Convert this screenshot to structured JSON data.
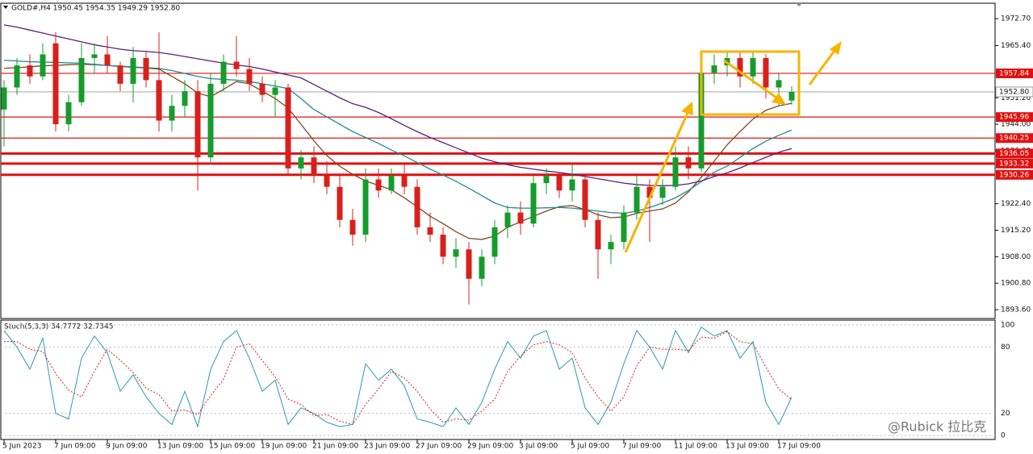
{
  "chart_data": [
    {
      "type": "candlestick",
      "title": "GOLD#,H4  1950.45 1954.35 1949.29 1952.80",
      "categories": [
        "5 Jun 2023",
        null,
        null,
        null,
        "7 Jun 09:00",
        null,
        null,
        null,
        "9 Jun 09:00",
        null,
        null,
        null,
        "13 Jun 09:00",
        null,
        null,
        null,
        "15 Jun 09:00",
        null,
        null,
        null,
        "19 Jun 09:00",
        null,
        null,
        null,
        "21 Jun 09:00",
        null,
        null,
        null,
        "23 Jun 09:00",
        null,
        null,
        null,
        "27 Jun 09:00",
        null,
        null,
        null,
        "29 Jun 09:00",
        null,
        null,
        null,
        "3 Jul 09:00",
        null,
        null,
        null,
        "5 Jul 09:00",
        null,
        null,
        null,
        "7 Jul 09:00",
        null,
        null,
        null,
        "11 Jul 09:00",
        null,
        null,
        null,
        "13 Jul 09:00",
        null,
        null,
        null,
        "17 Jul 09:00",
        null
      ],
      "open": [
        1948,
        1954,
        1960,
        1957,
        1966,
        1944,
        1950,
        1962,
        1963,
        1960,
        1955,
        1962,
        1956,
        1945,
        1949,
        1953,
        1935,
        1955,
        1961,
        1959,
        1955,
        1952,
        1954,
        1932,
        1935,
        1930,
        1927,
        1918,
        1914,
        1929,
        1926,
        1930,
        1927,
        1916,
        1914,
        1908,
        1910,
        1902,
        1908,
        1916,
        1920,
        1917,
        1928,
        1930,
        1926,
        1929,
        1918,
        1910,
        1912,
        1920,
        1927,
        1924,
        1927,
        1935,
        1932,
        1958,
        1960,
        1962,
        1957,
        1962,
        1954,
        1950.45
      ],
      "high": [
        1956,
        1962,
        1963,
        1966,
        1969,
        1952,
        1966,
        1966,
        1968,
        1961,
        1965,
        1964,
        1969,
        1952,
        1956,
        1956,
        1958,
        1963,
        1968,
        1962,
        1957,
        1956,
        1955,
        1937,
        1938,
        1934,
        1930,
        1921,
        1932,
        1932,
        1932,
        1933,
        1929,
        1920,
        1916,
        1913,
        1912,
        1910,
        1918,
        1922,
        1923,
        1930,
        1932,
        1931,
        1933,
        1930,
        1920,
        1914,
        1922,
        1930,
        1929,
        1929,
        1938,
        1938,
        1960,
        1963,
        1964,
        1964,
        1964,
        1963,
        1958,
        1954.35
      ],
      "low": [
        1938,
        1952,
        1955,
        1956,
        1942,
        1942,
        1949,
        1958,
        1958,
        1953,
        1950,
        1954,
        1942,
        1942,
        1946,
        1926,
        1933,
        1953,
        1957,
        1953,
        1950,
        1946,
        1930,
        1929,
        1928,
        1925,
        1916,
        1911,
        1912,
        1924,
        1925,
        1925,
        1914,
        1912,
        1906,
        1905,
        1895,
        1900,
        1906,
        1913,
        1914,
        1916,
        1925,
        1924,
        1923,
        1916,
        1902,
        1906,
        1910,
        1918,
        1912,
        1922,
        1926,
        1929,
        1931,
        1955,
        1957,
        1954,
        1955,
        1951,
        1949,
        1949.29
      ],
      "close": [
        1954,
        1960,
        1957,
        1963,
        1944,
        1950,
        1962,
        1963,
        1960,
        1955,
        1962,
        1956,
        1945,
        1949,
        1953,
        1935,
        1955,
        1961,
        1959,
        1955,
        1952,
        1954,
        1932,
        1935,
        1930,
        1927,
        1918,
        1914,
        1929,
        1926,
        1930,
        1927,
        1916,
        1914,
        1908,
        1910,
        1902,
        1908,
        1916,
        1920,
        1917,
        1928,
        1930,
        1926,
        1929,
        1918,
        1910,
        1912,
        1920,
        1927,
        1924,
        1927,
        1935,
        1932,
        1958,
        1960,
        1962,
        1957,
        1962,
        1954,
        1956,
        1952.8
      ],
      "up_color": "#169c2c",
      "down_color": "#d8201c",
      "lines": [
        {
          "color": "#7b4a1e",
          "values": [
            1959.2,
            1959.4,
            1959.6,
            1959.9,
            1960,
            1960.2,
            1960.3,
            1960.2,
            1960,
            1959.7,
            1959.5,
            1959.3,
            1959,
            1957,
            1955,
            1952.5,
            1951.5,
            1953.5,
            1955.6,
            1955,
            1953,
            1951,
            1948.4,
            1944,
            1939.5,
            1935.5,
            1932.6,
            1930.4,
            1928.6,
            1927.4,
            1926.2,
            1924,
            1921.6,
            1919,
            1917,
            1914.8,
            1913,
            1912.7,
            1913.6,
            1916,
            1917.5,
            1919,
            1920.4,
            1921.6,
            1921.9,
            1920.8,
            1919.4,
            1918.6,
            1918.8,
            1919.8,
            1920.4,
            1921,
            1922.6,
            1925.6,
            1929.6,
            1934,
            1938.4,
            1942,
            1945.4,
            1947.8,
            1949,
            1949.7
          ]
        },
        {
          "color": "#1f8a94",
          "values": [
            1961.4,
            1961.2,
            1961,
            1960.9,
            1960.8,
            1960.7,
            1960.6,
            1960.3,
            1960,
            1959.8,
            1959.6,
            1959.4,
            1959.2,
            1958.6,
            1957.8,
            1957,
            1956.4,
            1956.2,
            1956,
            1955.6,
            1955,
            1954.4,
            1953.7,
            1951,
            1948,
            1946,
            1944,
            1942,
            1940.4,
            1938.8,
            1937,
            1935.4,
            1933.6,
            1931.8,
            1930.2,
            1928.5,
            1926.6,
            1924.6,
            1922.6,
            1921.4,
            1921.2,
            1921.2,
            1921.3,
            1921.4,
            1921.2,
            1920.8,
            1920.4,
            1920,
            1919.8,
            1920.4,
            1921.4,
            1922.6,
            1924,
            1926,
            1928.4,
            1931,
            1932.6,
            1935,
            1937.4,
            1939.4,
            1941,
            1942.4
          ]
        },
        {
          "color": "#5c1f7a",
          "values": [
            1971,
            1970.4,
            1969.6,
            1968.8,
            1968,
            1967.2,
            1966.4,
            1965.6,
            1965,
            1964.4,
            1964,
            1963.8,
            1963.5,
            1963,
            1962.4,
            1961.8,
            1961.2,
            1960.6,
            1960.1,
            1959.7,
            1959,
            1958.2,
            1957.4,
            1956.6,
            1954.8,
            1953,
            1951.2,
            1949.6,
            1948.6,
            1947.2,
            1945.5,
            1943.7,
            1942,
            1940.4,
            1939,
            1937.6,
            1936.2,
            1934.8,
            1933.8,
            1933,
            1932.3,
            1931.8,
            1931.3,
            1930.9,
            1930.4,
            1929.8,
            1929.2,
            1928.6,
            1928,
            1927.6,
            1927.4,
            1927.3,
            1927.4,
            1927.8,
            1928.6,
            1929.8,
            1930.8,
            1932.1,
            1933.6,
            1935,
            1936.4,
            1937.4
          ]
        }
      ],
      "levels": {
        "color": "#e01010",
        "values": [
          1957.84,
          1945.96,
          1940.25,
          1936.05,
          1933.32,
          1930.26
        ]
      },
      "last_price": {
        "value": 1952.8,
        "label": "1952.80"
      },
      "ylim": [
        1891.2,
        1976.9
      ],
      "yticks": [
        {
          "value": 1972.7,
          "label": "1972.70"
        },
        {
          "value": 1965.4,
          "label": "1965.40"
        },
        {
          "value": 1951.2,
          "label": "1951.20"
        },
        {
          "value": 1944,
          "label": "1944.00"
        },
        {
          "value": 1936.8,
          "label": "1936.80"
        },
        {
          "value": 1922.4,
          "label": "1922.40"
        },
        {
          "value": 1915.2,
          "label": "1915.20"
        },
        {
          "value": 1908,
          "label": "1908.00"
        },
        {
          "value": 1900.8,
          "label": "1900.80"
        },
        {
          "value": 1893.6,
          "label": "1893.60"
        }
      ]
    },
    {
      "type": "stochastic",
      "title": "Stoch(5,3,3) 34.7772 32.7345",
      "series": [
        {
          "color": "#2a9aa8",
          "dashed": false,
          "values": [
            95,
            80,
            60,
            88,
            20,
            15,
            70,
            90,
            75,
            40,
            55,
            35,
            20,
            10,
            40,
            8,
            60,
            85,
            95,
            70,
            40,
            50,
            10,
            25,
            20,
            12,
            8,
            10,
            65,
            50,
            60,
            45,
            15,
            12,
            8,
            25,
            10,
            30,
            60,
            85,
            70,
            90,
            95,
            60,
            70,
            25,
            10,
            30,
            65,
            95,
            80,
            60,
            95,
            75,
            98,
            90,
            95,
            70,
            85,
            30,
            10,
            34.7772
          ]
        },
        {
          "color": "#d8201c",
          "dashed": true,
          "values": [
            85,
            85,
            78,
            76,
            56,
            41,
            35,
            58,
            78,
            68,
            57,
            43,
            37,
            22,
            23,
            19,
            36,
            51,
            80,
            83,
            68,
            53,
            33,
            28,
            18,
            19,
            13,
            10,
            28,
            42,
            58,
            52,
            40,
            24,
            12,
            15,
            14,
            22,
            33,
            58,
            72,
            82,
            85,
            82,
            75,
            52,
            35,
            22,
            35,
            63,
            80,
            78,
            78,
            77,
            89,
            88,
            94,
            85,
            83,
            62,
            42,
            32.7345
          ]
        }
      ],
      "ylim": [
        -3.6,
        104.4
      ],
      "yticks": [
        100,
        80,
        20,
        0
      ],
      "grid": true
    }
  ],
  "watermark": "@Rubick 拉比克"
}
